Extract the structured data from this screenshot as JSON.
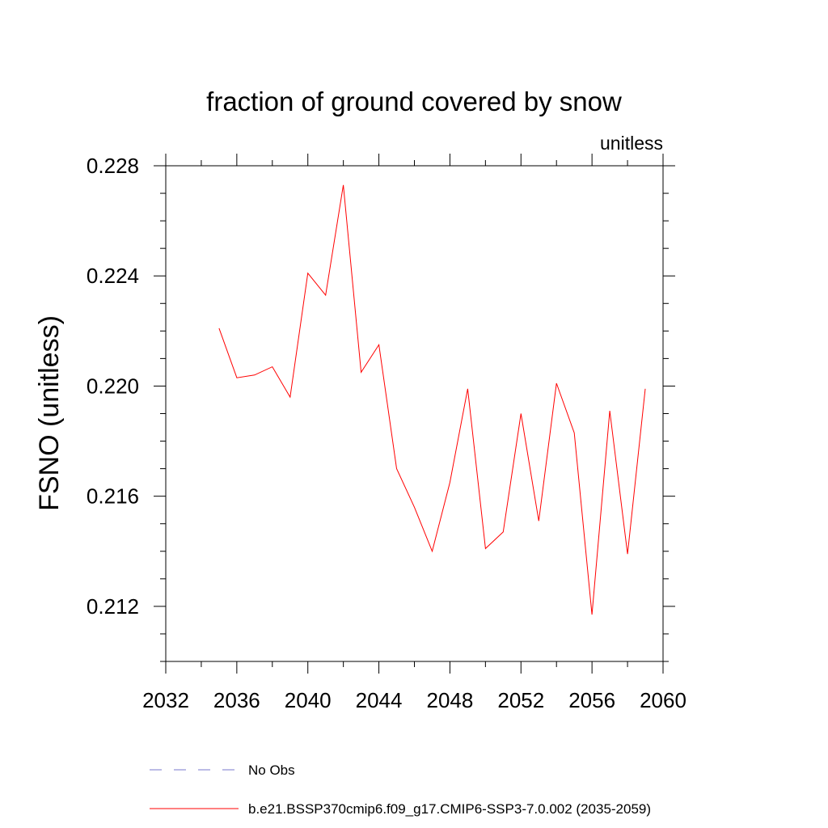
{
  "chart_data": {
    "type": "line",
    "title": "fraction of ground covered by snow",
    "units_label": "unitless",
    "xlabel": "",
    "ylabel": "FSNO  (unitless)",
    "xlim": [
      2032,
      2060
    ],
    "ylim": [
      0.21,
      0.228
    ],
    "x_ticks": [
      2032,
      2036,
      2040,
      2044,
      2048,
      2052,
      2056,
      2060
    ],
    "x_tick_labels": [
      "2032",
      "2036",
      "2040",
      "2044",
      "2048",
      "2052",
      "2056",
      "2060"
    ],
    "x_minor_step": 2,
    "y_ticks": [
      0.212,
      0.216,
      0.22,
      0.224,
      0.228
    ],
    "y_tick_labels": [
      "0.212",
      "0.216",
      "0.220",
      "0.224",
      "0.228"
    ],
    "y_minor_step": 0.001,
    "grid": false,
    "series": [
      {
        "name": "b.e21.BSSP370cmip6.f09_g17.CMIP6-SSP3-7.0.002 (2035-2059)",
        "color": "#ff0000",
        "style": "solid",
        "x": [
          2035,
          2036,
          2037,
          2038,
          2039,
          2040,
          2041,
          2042,
          2043,
          2044,
          2045,
          2046,
          2047,
          2048,
          2049,
          2050,
          2051,
          2052,
          2053,
          2054,
          2055,
          2056,
          2057,
          2058,
          2059
        ],
        "y": [
          0.2221,
          0.2203,
          0.2204,
          0.2207,
          0.2196,
          0.2241,
          0.2233,
          0.2273,
          0.2205,
          0.2215,
          0.217,
          0.2156,
          0.214,
          0.2165,
          0.2199,
          0.2141,
          0.2147,
          0.219,
          0.2151,
          0.2201,
          0.2183,
          0.2117,
          0.2191,
          0.2139,
          0.2199
        ]
      }
    ],
    "legend": {
      "placement": "bottom-left",
      "entries": [
        {
          "label": "No Obs",
          "color": "#7777cc",
          "style": "dashed"
        },
        {
          "label": "b.e21.BSSP370cmip6.f09_g17.CMIP6-SSP3-7.0.002 (2035-2059)",
          "color": "#ff0000",
          "style": "solid"
        }
      ]
    }
  }
}
